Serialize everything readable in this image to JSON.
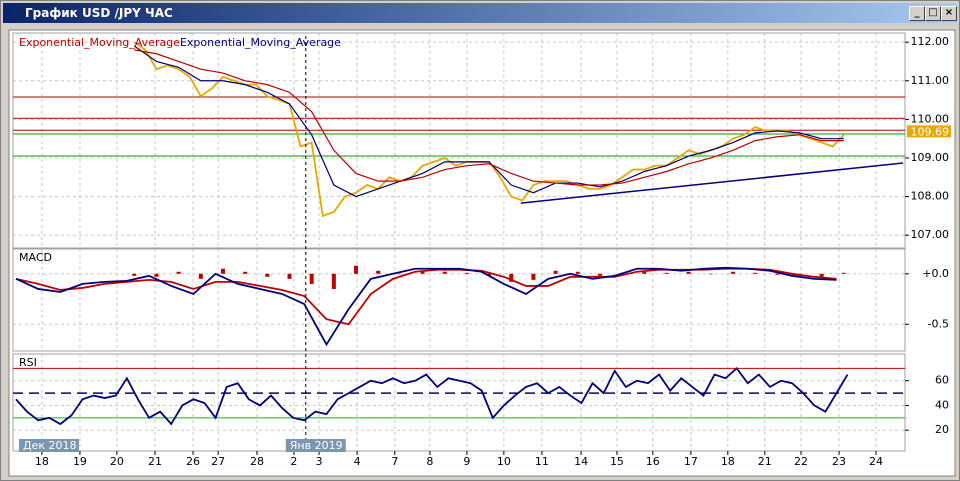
{
  "window": {
    "title": "График USD /JPY  ЧАС"
  },
  "chart_data": [
    {
      "type": "price",
      "ylim": [
        106.72,
        112.16
      ],
      "yticks": [
        {
          "value": 112,
          "label": "112.00"
        },
        {
          "value": 111,
          "label": "111.00"
        },
        {
          "value": 110,
          "label": "110.00"
        },
        {
          "value": 109,
          "label": "109.00"
        },
        {
          "value": 108,
          "label": "108.00"
        },
        {
          "value": 107,
          "label": "107.00"
        }
      ],
      "grid": true,
      "levels": [
        {
          "value": 110.58,
          "color": "#b00000"
        },
        {
          "value": 110.03,
          "color": "#b00000"
        },
        {
          "value": 109.72,
          "color": "#b00000"
        },
        {
          "value": 109.62,
          "color": "#00a000"
        },
        {
          "value": 109.05,
          "color": "#00a000"
        }
      ],
      "trendline": {
        "x": [
          136.6,
          240
        ],
        "values": [
          107.83,
          108.87
        ],
        "color": "#000080"
      },
      "last_price": 109.69,
      "series": [
        {
          "name": "Exponential_Moving_Average",
          "color": "#c00000",
          "x": [
            32,
            38,
            44,
            50,
            56,
            62,
            68,
            74,
            80,
            86,
            92,
            98,
            104,
            110,
            116,
            122,
            128,
            134,
            140,
            146,
            152,
            158,
            164,
            170,
            176,
            182,
            188,
            194,
            200,
            206,
            212,
            218,
            224
          ],
          "values": [
            111.8,
            111.7,
            111.5,
            111.3,
            111.2,
            111.0,
            110.9,
            110.7,
            110.2,
            109.2,
            108.6,
            108.4,
            108.4,
            108.5,
            108.7,
            108.8,
            108.85,
            108.6,
            108.4,
            108.35,
            108.3,
            108.3,
            108.35,
            108.5,
            108.65,
            108.85,
            109.0,
            109.2,
            109.45,
            109.55,
            109.6,
            109.45,
            109.45
          ]
        },
        {
          "name": "Exponential_Moving_Average",
          "color": "#000080",
          "x": [
            32,
            38,
            44,
            50,
            56,
            62,
            68,
            74,
            80,
            86,
            92,
            98,
            104,
            110,
            116,
            122,
            128,
            134,
            140,
            146,
            152,
            158,
            164,
            170,
            176,
            182,
            188,
            194,
            200,
            206,
            212,
            218,
            224
          ],
          "values": [
            111.9,
            111.5,
            111.35,
            111.0,
            111.0,
            110.9,
            110.7,
            110.4,
            109.6,
            108.3,
            108.0,
            108.2,
            108.4,
            108.6,
            108.9,
            108.9,
            108.9,
            108.3,
            108.1,
            108.35,
            108.35,
            108.25,
            108.4,
            108.65,
            108.8,
            109.05,
            109.2,
            109.4,
            109.65,
            109.7,
            109.65,
            109.5,
            109.5
          ]
        },
        {
          "color": "#e8a800",
          "x": [
            32,
            35,
            38,
            41,
            44,
            47,
            50,
            53,
            56,
            59,
            62,
            65,
            68,
            71,
            74,
            77,
            80,
            83,
            86,
            89,
            92,
            95,
            98,
            101,
            104,
            107,
            110,
            113,
            116,
            119,
            122,
            125,
            128,
            131,
            134,
            137,
            140,
            143,
            146,
            149,
            152,
            155,
            158,
            161,
            164,
            167,
            170,
            173,
            176,
            179,
            182,
            185,
            188,
            191,
            194,
            197,
            200,
            203,
            206,
            209,
            212,
            215,
            218,
            221,
            224
          ],
          "values": [
            112.0,
            111.8,
            111.3,
            111.4,
            111.3,
            111.1,
            110.6,
            110.8,
            111.1,
            111.0,
            110.9,
            110.9,
            110.6,
            110.5,
            110.4,
            109.3,
            109.4,
            107.5,
            107.6,
            108.0,
            108.1,
            108.3,
            108.2,
            108.5,
            108.4,
            108.5,
            108.8,
            108.9,
            109.0,
            108.8,
            108.9,
            108.9,
            108.9,
            108.5,
            108.0,
            107.9,
            108.3,
            108.4,
            108.4,
            108.4,
            108.3,
            108.2,
            108.2,
            108.3,
            108.5,
            108.7,
            108.7,
            108.8,
            108.8,
            109.0,
            109.2,
            109.1,
            109.2,
            109.3,
            109.5,
            109.6,
            109.8,
            109.7,
            109.7,
            109.7,
            109.6,
            109.5,
            109.4,
            109.3,
            109.6
          ]
        }
      ]
    },
    {
      "type": "macd",
      "title": "MACD",
      "ylim": [
        -0.745,
        0.216
      ],
      "yticks": [
        {
          "value": 0,
          "label": "+0.0"
        },
        {
          "value": -0.5,
          "label": "-0.5"
        }
      ],
      "grid": true,
      "histogram": {
        "color": "#c00000",
        "x": [
          32,
          38,
          44,
          50,
          56,
          62,
          68,
          74,
          80,
          86,
          92,
          98,
          104,
          110,
          116,
          122,
          128,
          134,
          140,
          146,
          152,
          158,
          164,
          170,
          176,
          182,
          188,
          194,
          200,
          206,
          212,
          218,
          224
        ],
        "values": [
          -0.02,
          -0.03,
          0.02,
          -0.05,
          0.05,
          0.02,
          -0.03,
          -0.05,
          -0.1,
          -0.15,
          0.08,
          0.03,
          0.0,
          0.02,
          0.02,
          0.01,
          -0.02,
          -0.08,
          -0.06,
          0.03,
          0.02,
          -0.02,
          0.01,
          0.02,
          0.01,
          0.02,
          0.0,
          0.02,
          0.01,
          -0.01,
          -0.02,
          -0.03,
          0.01
        ]
      },
      "series": [
        {
          "color": "#000080",
          "x": [
            0,
            6,
            12,
            18,
            24,
            30,
            36,
            42,
            48,
            54,
            60,
            66,
            72,
            78,
            84,
            90,
            96,
            102,
            108,
            114,
            120,
            126,
            132,
            138,
            144,
            150,
            156,
            162,
            168,
            174,
            180,
            186,
            192,
            198,
            204,
            210,
            216,
            222
          ],
          "values": [
            -0.05,
            -0.15,
            -0.18,
            -0.1,
            -0.08,
            -0.07,
            -0.02,
            -0.12,
            -0.2,
            0.0,
            -0.1,
            -0.15,
            -0.2,
            -0.3,
            -0.7,
            -0.35,
            -0.05,
            0.0,
            0.05,
            0.05,
            0.05,
            0.02,
            -0.1,
            -0.2,
            -0.05,
            0.0,
            -0.05,
            -0.02,
            0.05,
            0.05,
            0.03,
            0.05,
            0.06,
            0.05,
            0.03,
            -0.02,
            -0.05,
            -0.06
          ]
        },
        {
          "color": "#c00000",
          "x": [
            0,
            6,
            12,
            18,
            24,
            30,
            36,
            42,
            48,
            54,
            60,
            66,
            72,
            78,
            84,
            90,
            96,
            102,
            108,
            114,
            120,
            126,
            132,
            138,
            144,
            150,
            156,
            162,
            168,
            174,
            180,
            186,
            192,
            198,
            204,
            210,
            216,
            222
          ],
          "values": [
            -0.05,
            -0.1,
            -0.16,
            -0.14,
            -0.1,
            -0.08,
            -0.06,
            -0.08,
            -0.15,
            -0.08,
            -0.08,
            -0.12,
            -0.16,
            -0.22,
            -0.45,
            -0.5,
            -0.2,
            -0.05,
            0.02,
            0.04,
            0.04,
            0.03,
            -0.03,
            -0.12,
            -0.12,
            -0.03,
            -0.03,
            -0.03,
            0.02,
            0.04,
            0.04,
            0.04,
            0.05,
            0.05,
            0.04,
            0.0,
            -0.03,
            -0.05
          ]
        }
      ]
    },
    {
      "type": "rsi",
      "title": "RSI",
      "ylim": [
        4.8,
        79.2
      ],
      "yticks": [
        60,
        40,
        20
      ],
      "grid": true,
      "levels": [
        {
          "value": 70,
          "color": "#c00000"
        },
        {
          "value": 50,
          "color": "#000080",
          "dashed": true
        },
        {
          "value": 30,
          "color": "#00c000"
        }
      ],
      "series": [
        {
          "color": "#000080",
          "x": [
            0,
            3,
            6,
            9,
            12,
            15,
            18,
            21,
            24,
            27,
            30,
            33,
            36,
            39,
            42,
            45,
            48,
            51,
            54,
            57,
            60,
            63,
            66,
            69,
            72,
            75,
            78,
            81,
            84,
            87,
            90,
            93,
            96,
            99,
            102,
            105,
            108,
            111,
            114,
            117,
            120,
            123,
            126,
            129,
            132,
            135,
            138,
            141,
            144,
            147,
            150,
            153,
            156,
            159,
            162,
            165,
            168,
            171,
            174,
            177,
            180,
            183,
            186,
            189,
            192,
            195,
            198,
            201,
            204,
            207,
            210,
            213,
            216,
            219,
            222,
            225
          ],
          "values": [
            45,
            35,
            28,
            30,
            25,
            32,
            45,
            48,
            46,
            48,
            62,
            45,
            30,
            35,
            25,
            40,
            45,
            42,
            30,
            55,
            58,
            45,
            40,
            48,
            38,
            30,
            28,
            35,
            33,
            45,
            50,
            55,
            60,
            58,
            62,
            58,
            60,
            65,
            55,
            62,
            60,
            58,
            52,
            30,
            40,
            48,
            55,
            58,
            50,
            55,
            48,
            42,
            58,
            50,
            68,
            55,
            60,
            58,
            65,
            52,
            62,
            55,
            48,
            65,
            62,
            70,
            58,
            65,
            55,
            60,
            58,
            50,
            40,
            35,
            50,
            65
          ]
        }
      ],
      "xlim": [
        0,
        240
      ],
      "xticks": [
        {
          "value": 7,
          "label": "18"
        },
        {
          "value": 17.3,
          "label": "19"
        },
        {
          "value": 27.3,
          "label": "20"
        },
        {
          "value": 37.6,
          "label": "21"
        },
        {
          "value": 47.9,
          "label": "26"
        },
        {
          "value": 54.7,
          "label": "27"
        },
        {
          "value": 65.2,
          "label": "28"
        },
        {
          "value": 75.2,
          "label": "2"
        },
        {
          "value": 82,
          "label": "3"
        },
        {
          "value": 92.3,
          "label": "4"
        },
        {
          "value": 102.5,
          "label": "7"
        },
        {
          "value": 112,
          "label": "8"
        },
        {
          "value": 122,
          "label": "9"
        },
        {
          "value": 132,
          "label": "10"
        },
        {
          "value": 142.3,
          "label": "11"
        },
        {
          "value": 152.9,
          "label": "14"
        },
        {
          "value": 162.6,
          "label": "15"
        },
        {
          "value": 172.3,
          "label": "16"
        },
        {
          "value": 182.6,
          "label": "17"
        },
        {
          "value": 192.6,
          "label": "18"
        },
        {
          "value": 202.6,
          "label": "21"
        },
        {
          "value": 212.4,
          "label": "22"
        },
        {
          "value": 222.7,
          "label": "23"
        },
        {
          "value": 232.7,
          "label": "24"
        }
      ],
      "period_labels": [
        {
          "value": 0.8,
          "label": "Дек 2018"
        },
        {
          "value": 73,
          "label": "Янв 2019"
        }
      ]
    }
  ]
}
